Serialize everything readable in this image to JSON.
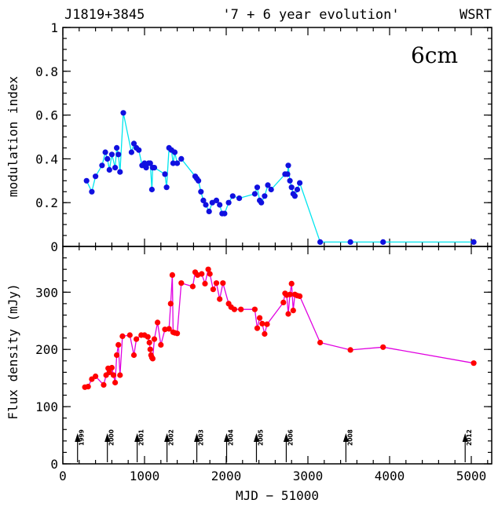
{
  "header": {
    "left": "J1819+3845",
    "center": "'7 + 6 year evolution'",
    "right": "WSRT"
  },
  "chart_data": [
    {
      "type": "line",
      "panel": "top",
      "ylabel": "modulation index",
      "annotation": "6cm",
      "xlim": [
        0,
        5250
      ],
      "ylim": [
        0,
        1
      ],
      "yticks": [
        "0",
        "0.2",
        "0.4",
        "0.6",
        "0.8",
        "1"
      ],
      "yticks_values": [
        0,
        0.2,
        0.4,
        0.6,
        0.8,
        1
      ],
      "color_line": "#00e5ee",
      "color_marker": "#1010e0",
      "series": [
        {
          "x": [
            290,
            355,
            400,
            480,
            520,
            545,
            570,
            600,
            640,
            660,
            680,
            700,
            740,
            840,
            870,
            900,
            930,
            970,
            1000,
            1020,
            1050,
            1070,
            1090,
            1100,
            1120,
            1250,
            1270,
            1300,
            1330,
            1350,
            1370,
            1400,
            1450,
            1620,
            1640,
            1660,
            1690,
            1720,
            1750,
            1790,
            1830,
            1880,
            1920,
            1950,
            1980,
            2030,
            2080,
            2160,
            2350,
            2380,
            2410,
            2430,
            2470,
            2510,
            2550,
            2720,
            2750,
            2760,
            2780,
            2800,
            2820,
            2840,
            2870,
            2900,
            3150,
            3520,
            3920,
            5030
          ],
          "y": [
            0.3,
            0.25,
            0.32,
            0.37,
            0.43,
            0.4,
            0.35,
            0.42,
            0.36,
            0.45,
            0.42,
            0.34,
            0.61,
            0.43,
            0.47,
            0.45,
            0.44,
            0.37,
            0.38,
            0.36,
            0.38,
            0.38,
            0.26,
            0.36,
            0.36,
            0.33,
            0.27,
            0.45,
            0.44,
            0.38,
            0.43,
            0.38,
            0.4,
            0.32,
            0.31,
            0.3,
            0.25,
            0.21,
            0.19,
            0.16,
            0.2,
            0.21,
            0.19,
            0.15,
            0.15,
            0.2,
            0.23,
            0.22,
            0.24,
            0.27,
            0.21,
            0.2,
            0.23,
            0.28,
            0.26,
            0.33,
            0.33,
            0.37,
            0.3,
            0.27,
            0.24,
            0.23,
            0.26,
            0.29,
            0.02,
            0.02,
            0.02,
            0.02
          ]
        }
      ]
    },
    {
      "type": "line",
      "panel": "bottom",
      "xlabel": "MJD − 51000",
      "ylabel": "Flux density (mJy)",
      "xlim": [
        0,
        5250
      ],
      "ylim": [
        0,
        380
      ],
      "xticks": [
        "0",
        "1000",
        "2000",
        "3000",
        "4000",
        "5000"
      ],
      "xticks_values": [
        0,
        1000,
        2000,
        3000,
        4000,
        5000
      ],
      "yticks": [
        "0",
        "100",
        "200",
        "300"
      ],
      "yticks_values": [
        0,
        100,
        200,
        300
      ],
      "color_line": "#e000e0",
      "color_marker": "#ff0000",
      "series": [
        {
          "x": [
            270,
            310,
            355,
            400,
            500,
            530,
            555,
            570,
            600,
            620,
            640,
            660,
            680,
            700,
            730,
            820,
            870,
            900,
            960,
            1000,
            1040,
            1060,
            1070,
            1080,
            1090,
            1100,
            1120,
            1160,
            1200,
            1250,
            1300,
            1320,
            1340,
            1350,
            1370,
            1400,
            1450,
            1590,
            1620,
            1650,
            1700,
            1740,
            1780,
            1800,
            1840,
            1880,
            1920,
            1960,
            2030,
            2060,
            2100,
            2180,
            2350,
            2380,
            2410,
            2440,
            2470,
            2500,
            2700,
            2720,
            2740,
            2760,
            2780,
            2800,
            2820,
            2840,
            2870,
            2900,
            3150,
            3520,
            3920,
            5030
          ],
          "y": [
            134,
            135,
            148,
            153,
            138,
            155,
            167,
            160,
            168,
            155,
            142,
            190,
            208,
            155,
            223,
            225,
            190,
            218,
            225,
            225,
            222,
            212,
            200,
            190,
            186,
            184,
            218,
            247,
            208,
            235,
            236,
            280,
            330,
            230,
            229,
            228,
            316,
            310,
            335,
            330,
            332,
            315,
            340,
            332,
            305,
            316,
            288,
            316,
            280,
            274,
            270,
            270,
            270,
            237,
            255,
            245,
            227,
            244,
            282,
            298,
            295,
            262,
            296,
            315,
            268,
            296,
            294,
            293,
            212,
            199,
            204,
            176
          ]
        }
      ],
      "year_markers": [
        {
          "x": 180,
          "label": "1999"
        },
        {
          "x": 545,
          "label": "2000"
        },
        {
          "x": 910,
          "label": "2001"
        },
        {
          "x": 1275,
          "label": "2002"
        },
        {
          "x": 1640,
          "label": "2003"
        },
        {
          "x": 2005,
          "label": "2004"
        },
        {
          "x": 2370,
          "label": "2005"
        },
        {
          "x": 2735,
          "label": "2006"
        },
        {
          "x": 3465,
          "label": "2008"
        },
        {
          "x": 4925,
          "label": "2012"
        }
      ]
    }
  ]
}
